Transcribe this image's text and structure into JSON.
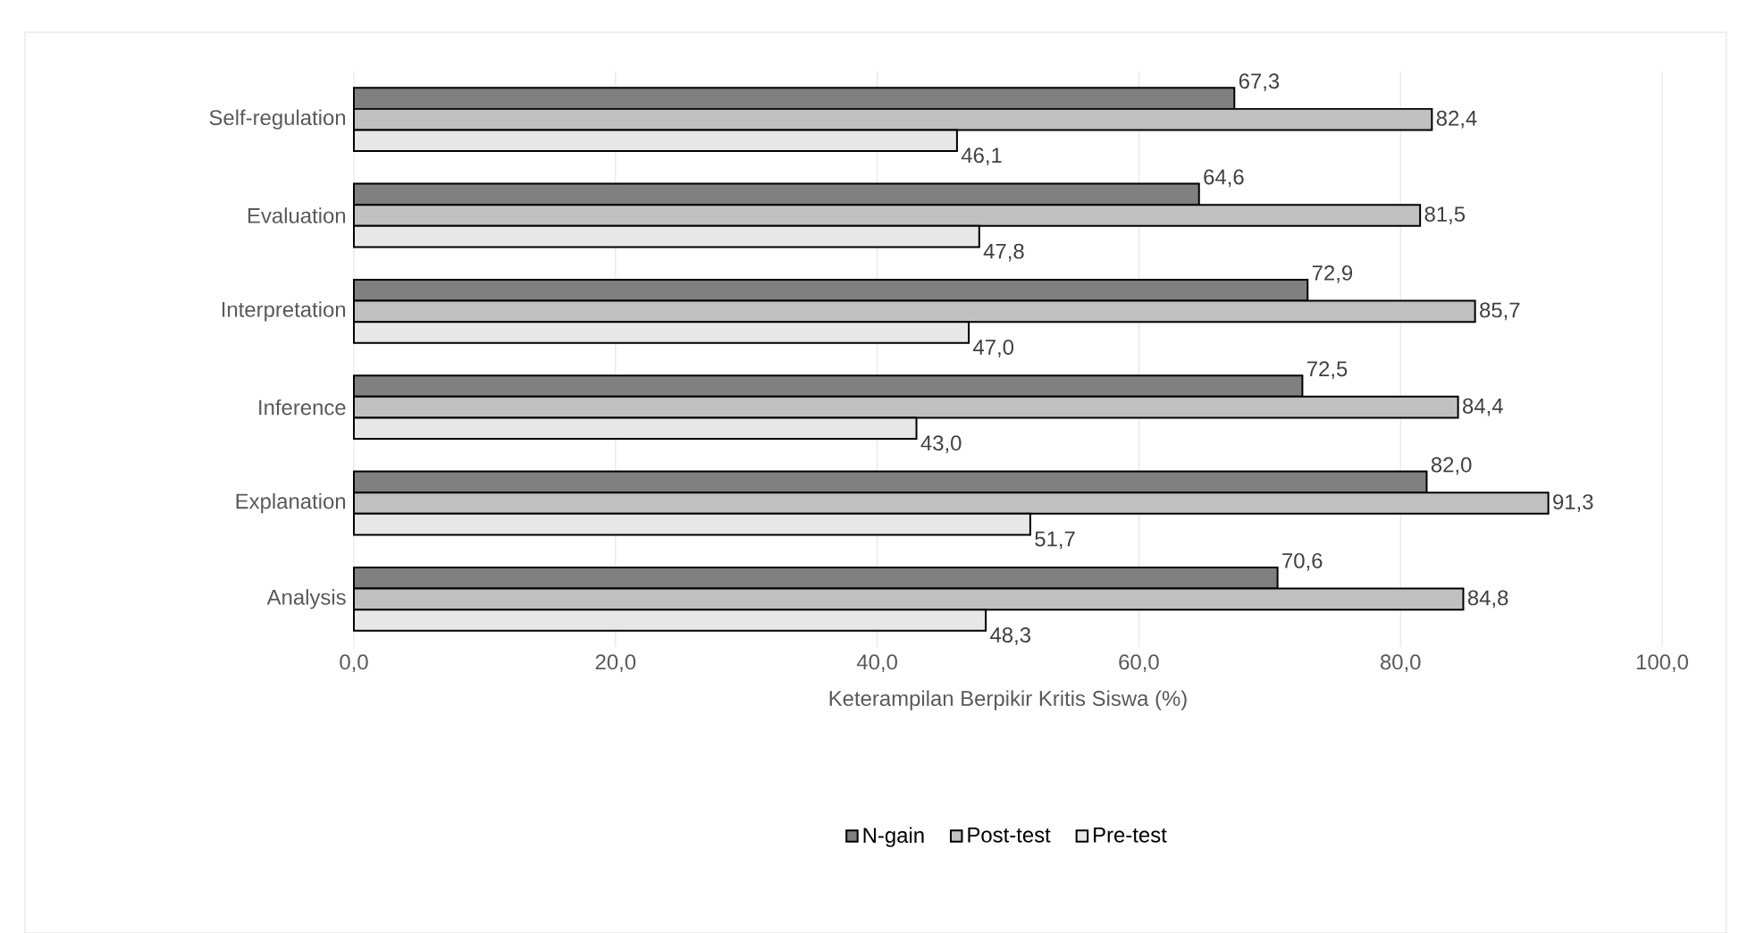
{
  "chart_data": {
    "type": "bar",
    "orientation": "horizontal",
    "xlabel": "Keterampilan Berpikir Kritis Siswa (%)",
    "categories": [
      "Self-regulation",
      "Evaluation",
      "Interpretation",
      "Inference",
      "Explanation",
      "Analysis"
    ],
    "series": [
      {
        "name": "N-gain",
        "color": "#808080",
        "values": [
          67.3,
          64.6,
          72.9,
          72.5,
          82.0,
          70.6
        ],
        "value_labels": [
          "67,3",
          "64,6",
          "72,9",
          "72,5",
          "82,0",
          "70,6"
        ]
      },
      {
        "name": "Post-test",
        "color": "#c0c0c0",
        "values": [
          82.4,
          81.5,
          85.7,
          84.4,
          91.3,
          84.8
        ],
        "value_labels": [
          "82,4",
          "81,5",
          "85,7",
          "84,4",
          "91,3",
          "84,8"
        ]
      },
      {
        "name": "Pre-test",
        "color": "#e7e7e7",
        "values": [
          46.1,
          47.8,
          47.0,
          43.0,
          51.7,
          48.3
        ],
        "value_labels": [
          "46,1",
          "47,8",
          "47,0",
          "43,0",
          "51,7",
          "48,3"
        ]
      }
    ],
    "xlim": [
      0,
      100
    ],
    "xticks": [
      {
        "value": 0,
        "label": "0,0"
      },
      {
        "value": 20,
        "label": "20,0"
      },
      {
        "value": 40,
        "label": "40,0"
      },
      {
        "value": 60,
        "label": "60,0"
      },
      {
        "value": 80,
        "label": "80,0"
      },
      {
        "value": 100,
        "label": "100,0"
      }
    ],
    "grid": "x",
    "legend": "bottom"
  }
}
